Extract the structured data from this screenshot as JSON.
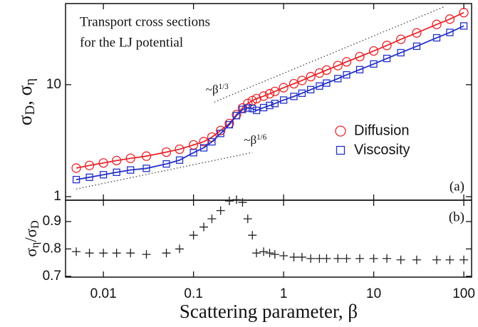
{
  "chart_data": [
    {
      "type": "line",
      "title_lines": [
        "Transport cross sections",
        "for the LJ potential"
      ],
      "panel_label": "(a)",
      "ylabel": [
        "σ",
        "D",
        ", σ",
        "η"
      ],
      "xscale": "log",
      "yscale": "log",
      "xlim": [
        0.0038,
        122
      ],
      "ylim": [
        0.93,
        53
      ],
      "xticks": [
        0.01,
        0.1,
        1,
        10,
        100
      ],
      "yticks": [
        1,
        10
      ],
      "legend": "center right",
      "x": [
        0.005,
        0.007,
        0.01,
        0.014,
        0.02,
        0.03,
        0.05,
        0.07,
        0.1,
        0.13,
        0.16,
        0.2,
        0.25,
        0.3,
        0.35,
        0.4,
        0.45,
        0.5,
        0.6,
        0.7,
        0.8,
        1,
        1.3,
        1.6,
        2,
        2.5,
        3,
        4,
        5,
        7,
        10,
        14,
        20,
        30,
        50,
        70,
        100
      ],
      "series": [
        {
          "name": "Diffusion",
          "color": "#e8262b",
          "marker": "circle",
          "values": [
            1.8,
            1.9,
            2.0,
            2.1,
            2.2,
            2.3,
            2.5,
            2.65,
            2.9,
            3.1,
            3.4,
            3.9,
            4.5,
            5.4,
            6.2,
            6.8,
            7.2,
            7.5,
            7.9,
            8.3,
            8.7,
            9.4,
            10.2,
            10.9,
            11.8,
            12.7,
            13.5,
            14.8,
            16,
            17.8,
            20,
            22.4,
            25.4,
            29,
            34.5,
            38.5,
            44
          ]
        },
        {
          "name": "Viscosity",
          "color": "#2431c8",
          "marker": "square",
          "values": [
            1.42,
            1.49,
            1.57,
            1.65,
            1.73,
            1.79,
            1.96,
            2.12,
            2.47,
            2.73,
            3.09,
            3.67,
            4.39,
            5.29,
            6.01,
            6.19,
            6.12,
            5.89,
            6.24,
            6.52,
            6.79,
            7.29,
            7.85,
            8.39,
            9.03,
            9.72,
            10.33,
            11.32,
            12.24,
            13.62,
            15.3,
            17.14,
            19.3,
            22.04,
            26.22,
            29.26,
            33.44
          ]
        }
      ],
      "reference_lines": [
        {
          "label": "~β",
          "exponent": "1/3",
          "x": [
            0.17,
            60
          ],
          "y": [
            7.0,
            49.5
          ]
        },
        {
          "label": "~β",
          "exponent": "1/6",
          "x": [
            0.005,
            0.45
          ],
          "y": [
            1.17,
            2.48
          ]
        }
      ]
    },
    {
      "type": "scatter",
      "panel_label": "(b)",
      "ylabel": [
        "σ",
        "η",
        "/σ",
        "D"
      ],
      "xlabel": "Scattering parameter, β",
      "xscale": "log",
      "xlim": [
        0.0038,
        122
      ],
      "ylim": [
        0.697,
        0.978
      ],
      "xticks": [
        0.01,
        0.1,
        1,
        10,
        100
      ],
      "yticks": [
        0.7,
        0.8,
        0.9
      ],
      "color": "#222222",
      "x": [
        0.005,
        0.007,
        0.01,
        0.014,
        0.02,
        0.03,
        0.05,
        0.07,
        0.1,
        0.13,
        0.16,
        0.2,
        0.25,
        0.3,
        0.35,
        0.4,
        0.45,
        0.5,
        0.6,
        0.7,
        0.8,
        1,
        1.3,
        1.6,
        2,
        2.5,
        3,
        4,
        5,
        7,
        10,
        14,
        20,
        30,
        50,
        70,
        100
      ],
      "values": [
        0.79,
        0.785,
        0.785,
        0.785,
        0.785,
        0.78,
        0.785,
        0.8,
        0.85,
        0.88,
        0.91,
        0.94,
        0.975,
        0.98,
        0.97,
        0.91,
        0.85,
        0.785,
        0.79,
        0.785,
        0.78,
        0.775,
        0.77,
        0.77,
        0.765,
        0.765,
        0.765,
        0.765,
        0.765,
        0.765,
        0.765,
        0.765,
        0.76,
        0.76,
        0.76,
        0.76,
        0.76
      ]
    }
  ]
}
